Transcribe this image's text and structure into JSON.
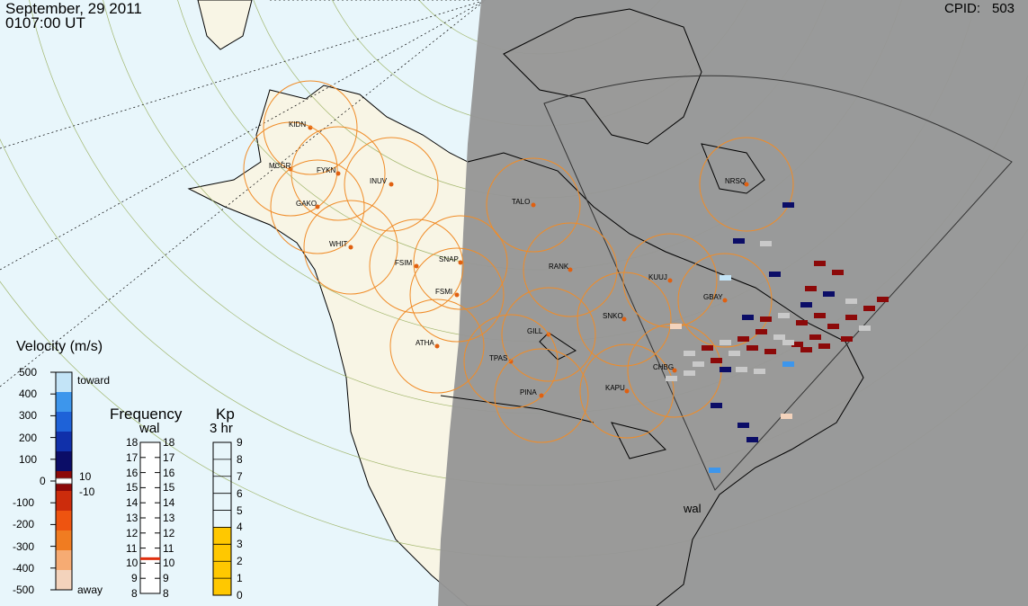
{
  "header": {
    "date": "September, 29 2011",
    "time": "0107:00 UT",
    "cpid_label": "CPID:",
    "cpid_value": "503"
  },
  "legend": {
    "velocity_title": "Velocity (m/s)",
    "velocity_ticks": [
      "500",
      "400",
      "300",
      "200",
      "100",
      "0",
      "-100",
      "-200",
      "-300",
      "-400",
      "-500"
    ],
    "toward_label": "toward",
    "away_label": "away",
    "threshold_pos": "10",
    "threshold_neg": "-10",
    "velocity_colors": [
      "#f3d3bc",
      "#f6ab73",
      "#f07c21",
      "#ee5410",
      "#cc2c0c",
      "#8c0909",
      "#0b0d67",
      "#1030aa",
      "#1e62d8",
      "#3d96ec",
      "#c3e4f7"
    ],
    "frequency_title": "Frequency",
    "frequency_station": "wal",
    "frequency_ticks": [
      "18",
      "17",
      "16",
      "15",
      "14",
      "13",
      "12",
      "11",
      "10",
      "9",
      "8"
    ],
    "frequency_value": 10.3,
    "kp_title": "Kp",
    "kp_subtitle": "3 hr",
    "kp_ticks": [
      "9",
      "8",
      "7",
      "6",
      "5",
      "4",
      "3",
      "2",
      "1",
      "0"
    ],
    "kp_value": 4,
    "kp_fill_color": "#ffc800"
  },
  "map": {
    "radar_label": "wal",
    "stations": [
      {
        "name": "KIDN"
      },
      {
        "name": "MCGR"
      },
      {
        "name": "FYKN"
      },
      {
        "name": "INUV"
      },
      {
        "name": "GAKO"
      },
      {
        "name": "WHIT"
      },
      {
        "name": "FSIM"
      },
      {
        "name": "SNAP"
      },
      {
        "name": "FSMI"
      },
      {
        "name": "TALO"
      },
      {
        "name": "RANK"
      },
      {
        "name": "KUUJ"
      },
      {
        "name": "GBAY"
      },
      {
        "name": "NRSQ"
      },
      {
        "name": "SNKO"
      },
      {
        "name": "GILL"
      },
      {
        "name": "ATHA"
      },
      {
        "name": "TPAS"
      },
      {
        "name": "CHBG"
      },
      {
        "name": "KAPU"
      },
      {
        "name": "PINA"
      }
    ],
    "colors": {
      "ocean": "#e8f6fb",
      "land": "#f8f5e5",
      "night": "#969696",
      "ring": "#f08c28",
      "station_dot": "#e06010"
    }
  }
}
